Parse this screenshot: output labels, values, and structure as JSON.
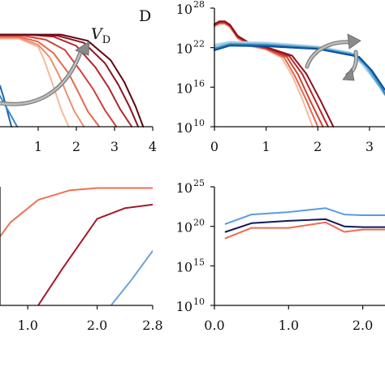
{
  "figure": {
    "panel_letter": "D",
    "annotation": {
      "main": "V",
      "sub": "D"
    }
  },
  "chart_data": [
    {
      "panel": "top-left",
      "type": "line",
      "xlim": [
        0,
        4
      ],
      "xticks": [
        1,
        2,
        3,
        4
      ],
      "xtick_labels": [
        "1",
        "2",
        "3",
        "4"
      ],
      "ylim": [
        0,
        1
      ],
      "legend": "none",
      "series": [
        {
          "color": "#f6b99f",
          "x": [
            0.0,
            0.5,
            1.0,
            1.15,
            1.3,
            1.45,
            1.6,
            1.8
          ],
          "y": [
            0.86,
            0.86,
            0.78,
            0.66,
            0.5,
            0.34,
            0.17,
            0.0
          ]
        },
        {
          "color": "#ef8f6b",
          "x": [
            0.0,
            0.5,
            1.0,
            1.3,
            1.55,
            1.75,
            1.95,
            2.2
          ],
          "y": [
            0.87,
            0.87,
            0.8,
            0.68,
            0.5,
            0.32,
            0.15,
            0.0
          ]
        },
        {
          "color": "#e4684d",
          "x": [
            0.0,
            0.5,
            1.0,
            1.4,
            1.8,
            2.05,
            2.3,
            2.6
          ],
          "y": [
            0.88,
            0.88,
            0.83,
            0.72,
            0.52,
            0.34,
            0.15,
            0.0
          ]
        },
        {
          "color": "#cf4237",
          "x": [
            0.0,
            0.6,
            1.2,
            1.7,
            2.1,
            2.45,
            2.75,
            3.05
          ],
          "y": [
            0.89,
            0.89,
            0.85,
            0.75,
            0.55,
            0.36,
            0.16,
            0.0
          ]
        },
        {
          "color": "#b3262b",
          "x": [
            0.0,
            0.7,
            1.4,
            2.0,
            2.5,
            2.85,
            3.15,
            3.45
          ],
          "y": [
            0.9,
            0.9,
            0.88,
            0.79,
            0.58,
            0.38,
            0.17,
            0.0
          ]
        },
        {
          "color": "#8f1120",
          "x": [
            0.0,
            0.8,
            1.5,
            2.2,
            2.75,
            3.1,
            3.4,
            3.62
          ],
          "y": [
            0.9,
            0.9,
            0.89,
            0.82,
            0.62,
            0.41,
            0.19,
            0.0
          ]
        },
        {
          "color": "#5e0713",
          "x": [
            0.0,
            0.8,
            1.6,
            2.3,
            2.9,
            3.25,
            3.55,
            3.75
          ],
          "y": [
            0.9,
            0.9,
            0.9,
            0.84,
            0.65,
            0.44,
            0.2,
            0.0
          ]
        },
        {
          "color": "#2166ac",
          "x": [
            0.0,
            0.1,
            0.2,
            0.3
          ],
          "y": [
            0.4,
            0.28,
            0.14,
            0.0
          ]
        },
        {
          "color": "#3f86c2",
          "x": [
            0.0,
            0.15,
            0.3,
            0.45
          ],
          "y": [
            0.3,
            0.2,
            0.1,
            0.0
          ]
        }
      ]
    },
    {
      "panel": "top-right",
      "type": "line",
      "xlim": [
        0,
        3.3
      ],
      "xticks": [
        0,
        1,
        2,
        3
      ],
      "xtick_labels": [
        "0",
        "1",
        "2",
        "3"
      ],
      "ylim": [
        10,
        28
      ],
      "y_log": true,
      "yticks": [
        10,
        16,
        22,
        28
      ],
      "ytick_labels": [
        {
          "base": "10",
          "exp": "10"
        },
        {
          "base": "10",
          "exp": "16"
        },
        {
          "base": "10",
          "exp": "22"
        },
        {
          "base": "10",
          "exp": "28"
        }
      ],
      "legend": "none",
      "series": [
        {
          "color": "#f6b99f",
          "x": [
            0.0,
            0.1,
            0.2,
            0.3,
            0.45,
            0.7,
            1.0,
            1.3,
            1.5,
            1.7,
            1.9
          ],
          "y": [
            25.2,
            25.6,
            25.6,
            25.1,
            23.4,
            22.2,
            21.7,
            20.5,
            17.8,
            14.2,
            10.0
          ]
        },
        {
          "color": "#e4684d",
          "x": [
            0.0,
            0.1,
            0.2,
            0.3,
            0.45,
            0.7,
            1.0,
            1.35,
            1.55,
            1.78,
            2.0
          ],
          "y": [
            25.3,
            25.7,
            25.7,
            25.2,
            23.5,
            22.3,
            21.8,
            20.5,
            17.8,
            14.0,
            10.0
          ]
        },
        {
          "color": "#cf4237",
          "x": [
            0.0,
            0.1,
            0.2,
            0.3,
            0.45,
            0.7,
            1.0,
            1.4,
            1.62,
            1.85,
            2.1
          ],
          "y": [
            25.4,
            25.8,
            25.8,
            25.3,
            23.6,
            22.4,
            21.9,
            20.6,
            17.9,
            14.0,
            10.0
          ]
        },
        {
          "color": "#b3262b",
          "x": [
            0.0,
            0.1,
            0.2,
            0.3,
            0.45,
            0.7,
            1.0,
            1.45,
            1.7,
            1.95,
            2.2
          ],
          "y": [
            25.5,
            25.9,
            25.9,
            25.4,
            23.7,
            22.5,
            22.0,
            20.7,
            18.0,
            14.0,
            10.0
          ]
        },
        {
          "color": "#8f1120",
          "x": [
            0.0,
            0.1,
            0.2,
            0.3,
            0.45,
            0.7,
            1.0,
            1.5,
            1.78,
            2.05,
            2.3
          ],
          "y": [
            25.6,
            26.0,
            26.0,
            25.5,
            23.8,
            22.6,
            22.1,
            20.8,
            18.0,
            14.0,
            10.0
          ]
        },
        {
          "color": "#c6dbef",
          "x": [
            0.0,
            0.3,
            1.0,
            2.0,
            2.6,
            2.85,
            3.1,
            3.3
          ],
          "y": [
            22.5,
            22.9,
            22.8,
            22.2,
            21.3,
            19.5,
            17.0,
            15.5
          ]
        },
        {
          "color": "#9ecae1",
          "x": [
            0.0,
            0.3,
            1.0,
            2.0,
            2.65,
            2.9,
            3.15,
            3.3
          ],
          "y": [
            22.3,
            22.8,
            22.7,
            22.1,
            21.2,
            19.3,
            16.5,
            15.0
          ]
        },
        {
          "color": "#6baed6",
          "x": [
            0.0,
            0.3,
            1.0,
            2.0,
            2.7,
            2.95,
            3.2,
            3.3
          ],
          "y": [
            22.0,
            22.6,
            22.5,
            22.0,
            21.0,
            19.0,
            16.0,
            14.8
          ]
        },
        {
          "color": "#3182bd",
          "x": [
            0.0,
            0.3,
            1.0,
            2.0,
            2.75,
            3.0,
            3.25,
            3.3
          ],
          "y": [
            21.8,
            22.5,
            22.4,
            21.9,
            20.8,
            18.8,
            15.8,
            15.0
          ]
        },
        {
          "color": "#08519c",
          "x": [
            0.0,
            0.3,
            1.0,
            2.0,
            2.8,
            3.05,
            3.3
          ],
          "y": [
            21.6,
            22.3,
            22.2,
            21.8,
            20.6,
            18.5,
            15.6
          ]
        }
      ]
    },
    {
      "panel": "bottom-left",
      "type": "line",
      "xlim": [
        0.6,
        2.8
      ],
      "xticks": [
        1.0,
        2.0,
        2.8
      ],
      "xtick_labels": [
        "1.0",
        "2.0",
        "2.8"
      ],
      "ylim": [
        0,
        1
      ],
      "legend": "none",
      "series": [
        {
          "color": "#ef6f55",
          "x": [
            0.6,
            0.75,
            1.15,
            1.6,
            2.0,
            2.4,
            2.8
          ],
          "y": [
            0.58,
            0.7,
            0.89,
            0.97,
            0.99,
            0.99,
            0.99
          ]
        },
        {
          "color": "#a3192b",
          "x": [
            1.15,
            1.5,
            2.0,
            2.4,
            2.8
          ],
          "y": [
            0.0,
            0.31,
            0.73,
            0.82,
            0.85
          ]
        },
        {
          "color": "#6aa3dd",
          "x": [
            2.2,
            2.5,
            2.8
          ],
          "y": [
            0.0,
            0.22,
            0.46
          ]
        }
      ]
    },
    {
      "panel": "bottom-right",
      "type": "line",
      "xlim": [
        0,
        2.3
      ],
      "xticks": [
        0.0,
        1.0,
        2.0
      ],
      "xtick_labels": [
        "0.0",
        "1.0",
        "2.0"
      ],
      "ylim": [
        10,
        25
      ],
      "y_log": true,
      "yticks": [
        10,
        15,
        20,
        25
      ],
      "ytick_labels": [
        {
          "base": "10",
          "exp": "10"
        },
        {
          "base": "10",
          "exp": "15"
        },
        {
          "base": "10",
          "exp": "20"
        },
        {
          "base": "10",
          "exp": "25"
        }
      ],
      "legend": "none",
      "series": [
        {
          "color": "#5b9be0",
          "x": [
            0.15,
            0.5,
            1.0,
            1.5,
            1.75,
            2.0,
            2.3
          ],
          "y": [
            20.3,
            21.5,
            21.8,
            22.3,
            21.5,
            21.4,
            21.4
          ]
        },
        {
          "color": "#0d1b5c",
          "x": [
            0.15,
            0.5,
            1.0,
            1.5,
            1.75,
            2.0,
            2.3
          ],
          "y": [
            19.3,
            20.4,
            20.7,
            20.9,
            20.0,
            19.9,
            19.9
          ]
        },
        {
          "color": "#ee6a54",
          "x": [
            0.15,
            0.5,
            1.0,
            1.5,
            1.75,
            2.0,
            2.3
          ],
          "y": [
            18.5,
            19.8,
            19.8,
            20.5,
            19.3,
            19.6,
            19.6
          ]
        }
      ]
    }
  ]
}
